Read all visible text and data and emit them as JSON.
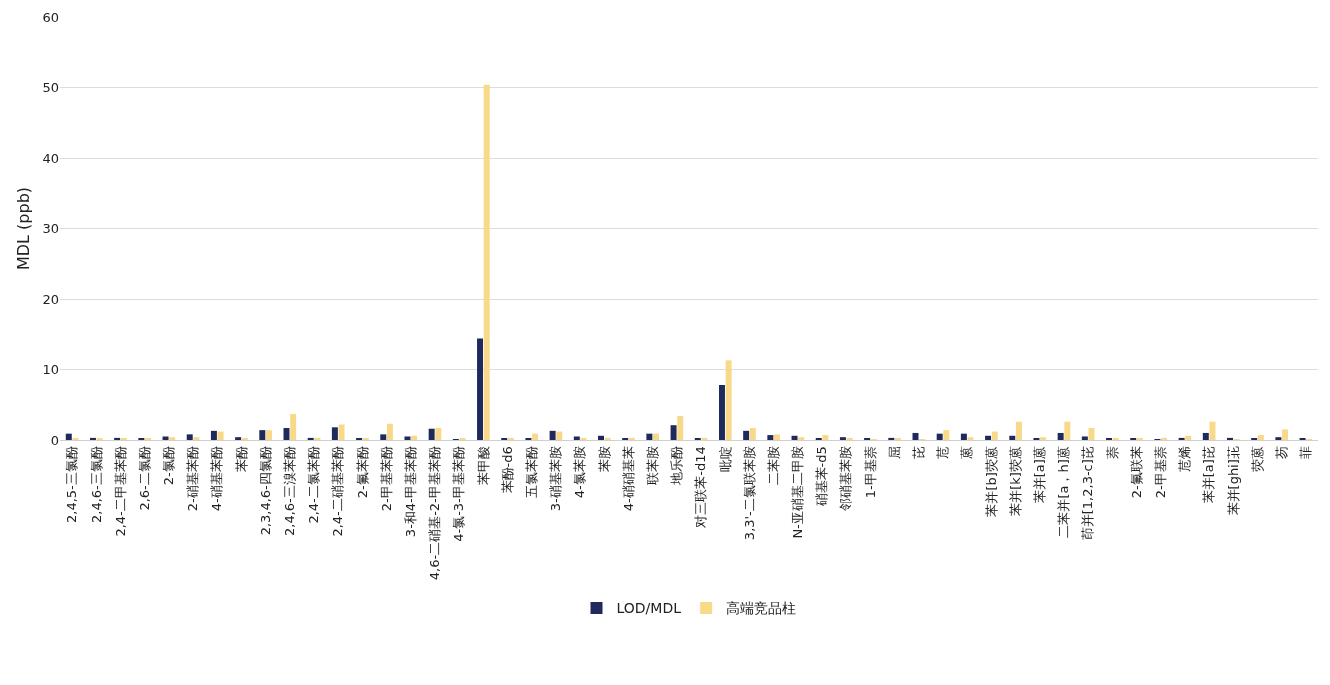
{
  "chart_data": {
    "type": "bar",
    "ylabel": "MDL (ppb)",
    "categories": [
      "2,4,5-三氯酚",
      "2,4,6-三氯酚",
      "2,4-二甲基苯酚",
      "2,6-二氯酚",
      "2-氯酚",
      "2-硝基苯酚",
      "4-硝基苯酚",
      "苯酚",
      "2,3,4,6-四氯酚",
      "2,4,6-三溴苯酚",
      "2,4-二氯苯酚",
      "2,4-二硝基苯酚",
      "2-氟苯酚",
      "2-甲基苯酚",
      "3-和4-甲基苯酚",
      "4,6-二硝基-2-甲基苯酚",
      "4-氯-3-甲基苯酚",
      "苯甲酸",
      "苯酚-d6",
      "五氯苯酚",
      "3-硝基苯胺",
      "4-氯苯胺",
      "苯胺",
      "4-硝硝基苯",
      "联苯胺",
      "地乐酚",
      "对三联苯-d14",
      "吡啶",
      "3,3'-二氯联苯胺",
      "二苯胺",
      "N-亚硝基二甲胺",
      "硝基苯-d5",
      "邻硝基苯胺",
      "1-甲基萘",
      "屈",
      "芘",
      "苊",
      "蒽",
      "苯并[b]荧蒽",
      "苯并[k]荧蒽",
      "苯并[a]蒽",
      "二苯并[a，h]蒽",
      "茚并[1,2,3-c]芘",
      "萘",
      "2-氟联苯",
      "2-甲基萘",
      "苊烯",
      "苯并[a]芘",
      "苯并[ghi]苝",
      "荧蒽",
      "芴",
      "菲"
    ],
    "series": [
      {
        "name": "LOD/MDL",
        "color": "#1f2a5c",
        "values": [
          0.9,
          0.3,
          0.3,
          0.2,
          0.5,
          0.8,
          1.3,
          0.4,
          1.4,
          1.7,
          0.3,
          1.8,
          0.2,
          0.8,
          0.5,
          1.6,
          0.1,
          14.4,
          0.2,
          0.2,
          1.3,
          0.5,
          0.6,
          0.2,
          0.9,
          2.1,
          0.2,
          7.8,
          1.3,
          0.7,
          0.6,
          0.2,
          0.4,
          0.2,
          0.3,
          1.0,
          0.9,
          0.9,
          0.6,
          0.6,
          0.2,
          1.0,
          0.5,
          0.2,
          0.2,
          0.1,
          0.3,
          1.0,
          0.3,
          0.2,
          0.4,
          0.2
        ]
      },
      {
        "name": "高端竞品柱",
        "color": "#f8d98a",
        "values": [
          0.3,
          0.2,
          0.2,
          0.2,
          0.4,
          0.4,
          1.2,
          0.2,
          1.4,
          3.7,
          0.3,
          2.2,
          0.2,
          2.3,
          0.6,
          1.7,
          0.2,
          50.4,
          0.3,
          0.9,
          1.2,
          0.3,
          0.3,
          0.3,
          0.9,
          3.4,
          0.3,
          11.3,
          1.7,
          0.8,
          0.4,
          0.7,
          0.3,
          0.1,
          0.2,
          0.1,
          1.4,
          0.4,
          1.2,
          2.6,
          0.4,
          2.6,
          1.7,
          0.3,
          0.2,
          0.3,
          0.6,
          2.6,
          0.1,
          0.7,
          1.5,
          0.1
        ]
      }
    ],
    "ylim": [
      0,
      60
    ],
    "yticks": [
      0,
      10,
      20,
      30,
      40,
      50,
      60
    ],
    "grid": "y",
    "legend": "bottom"
  }
}
